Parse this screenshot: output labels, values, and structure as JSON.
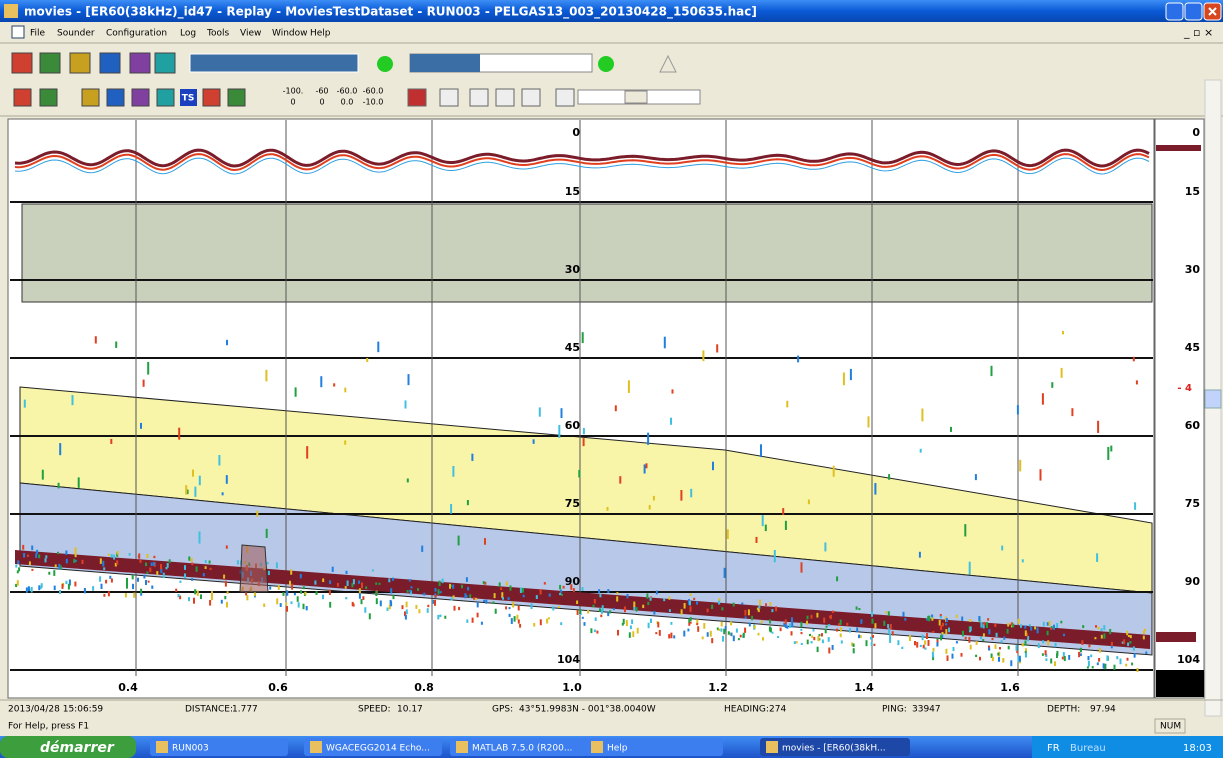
{
  "window": {
    "title": "movies - [ER60(38kHz)_id47 - Replay - MoviesTestDataset - RUN003 - PELGAS13_003_20130428_150635.hac]"
  },
  "menu": [
    "File",
    "Sounder",
    "Configuration",
    "Log",
    "Tools",
    "View",
    "Window",
    "Help"
  ],
  "toolbar": {
    "ts_button": "TS",
    "values": [
      [
        "-100.",
        "0"
      ],
      [
        "-60",
        "0"
      ],
      [
        "-60.0",
        "0.0"
      ],
      [
        "-60.0",
        "-10.0"
      ]
    ]
  },
  "echogram": {
    "depth_labels": [
      "0",
      "15",
      "30",
      "45",
      "60",
      "75",
      "90",
      "104"
    ],
    "right_labels": [
      "0",
      "15",
      "30",
      "45",
      "60",
      "75",
      "90",
      "104"
    ],
    "marker": "- 4",
    "distance_labels": [
      "0.4",
      "0.6",
      "0.8",
      "1.0",
      "1.2",
      "1.4",
      "1.6"
    ]
  },
  "status": {
    "date": "2013/04/28 15:06:59",
    "fields": [
      {
        "label": "DISTANCE:",
        "value": "1.777"
      },
      {
        "label": "SPEED:",
        "value": "10.17"
      },
      {
        "label": "GPS:",
        "value": "43°51.9983N - 001°38.0040W"
      },
      {
        "label": "HEADING:",
        "value": "274"
      },
      {
        "label": "PING:",
        "value": "33947"
      },
      {
        "label": "DEPTH:",
        "value": "97.94"
      }
    ]
  },
  "help": "For Help, press F1",
  "indicator": "NUM",
  "taskbar": {
    "start": "démarrer",
    "items": [
      "RUN003",
      "WGACEGG2014 Echo...",
      "MATLAB 7.5.0 (R200...",
      "Help",
      "movies - [ER60(38kH..."
    ],
    "lang": "FR",
    "desktop": "Bureau",
    "clock": "18:03"
  }
}
